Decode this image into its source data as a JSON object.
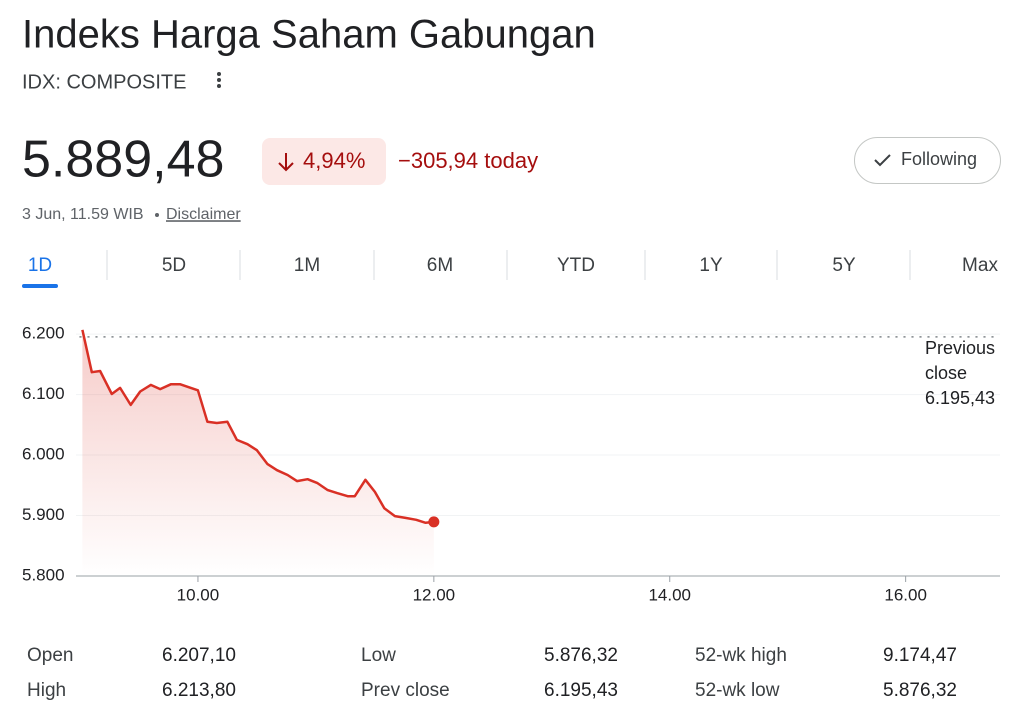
{
  "header": {
    "title": "Indeks Harga Saham Gabungan",
    "ticker": "IDX: COMPOSITE"
  },
  "quote": {
    "price": "5.889,48",
    "change_pct": "4,94%",
    "change": "−305,94 today",
    "timestamp": "3 Jun, 11.59 WIB",
    "disclaimer": "Disclaimer"
  },
  "follow_button": "Following",
  "tabs": [
    "1D",
    "5D",
    "1M",
    "6M",
    "YTD",
    "1Y",
    "5Y",
    "Max"
  ],
  "active_tab": "1D",
  "chart_data": {
    "type": "line",
    "color": "#d93025",
    "area": true,
    "x": [
      9.02,
      9.1,
      9.17,
      9.27,
      9.34,
      9.43,
      9.51,
      9.6,
      9.68,
      9.77,
      9.85,
      9.94,
      10.0,
      10.08,
      10.16,
      10.25,
      10.33,
      10.42,
      10.5,
      10.59,
      10.67,
      10.76,
      10.84,
      10.93,
      11.01,
      11.1,
      11.18,
      11.27,
      11.33,
      11.42,
      11.5,
      11.58,
      11.67,
      11.76,
      11.85,
      11.93,
      12.0
    ],
    "values": [
      6207,
      6137,
      6139,
      6101,
      6111,
      6083,
      6105,
      6116,
      6109,
      6117,
      6117,
      6111,
      6107,
      6055,
      6053,
      6055,
      6025,
      6018,
      6008,
      5985,
      5975,
      5967,
      5957,
      5960,
      5954,
      5942,
      5937,
      5932,
      5932,
      5959,
      5939,
      5912,
      5899,
      5896,
      5893,
      5888,
      5889.48
    ],
    "xlim": [
      9,
      16.8
    ],
    "ylim": [
      5800,
      6220
    ],
    "xticks": [
      {
        "value": 10,
        "label": "10.00"
      },
      {
        "value": 12,
        "label": "12.00"
      },
      {
        "value": 14,
        "label": "14.00"
      },
      {
        "value": 16,
        "label": "16.00"
      }
    ],
    "yticks": [
      {
        "value": 5800,
        "label": "5.800"
      },
      {
        "value": 5900,
        "label": "5.900"
      },
      {
        "value": 6000,
        "label": "6.000"
      },
      {
        "value": 6100,
        "label": "6.100"
      },
      {
        "value": 6200,
        "label": "6.200"
      }
    ],
    "grid": true,
    "reference_line": {
      "value": 6195.43,
      "label_lines": [
        "Previous",
        "close"
      ],
      "value_label": "6.195,43"
    }
  },
  "stats": [
    [
      "Open",
      "6.207,10",
      "Low",
      "5.876,32",
      "52-wk high",
      "9.174,47"
    ],
    [
      "High",
      "6.213,80",
      "Prev close",
      "6.195,43",
      "52-wk low",
      "5.876,32"
    ]
  ]
}
